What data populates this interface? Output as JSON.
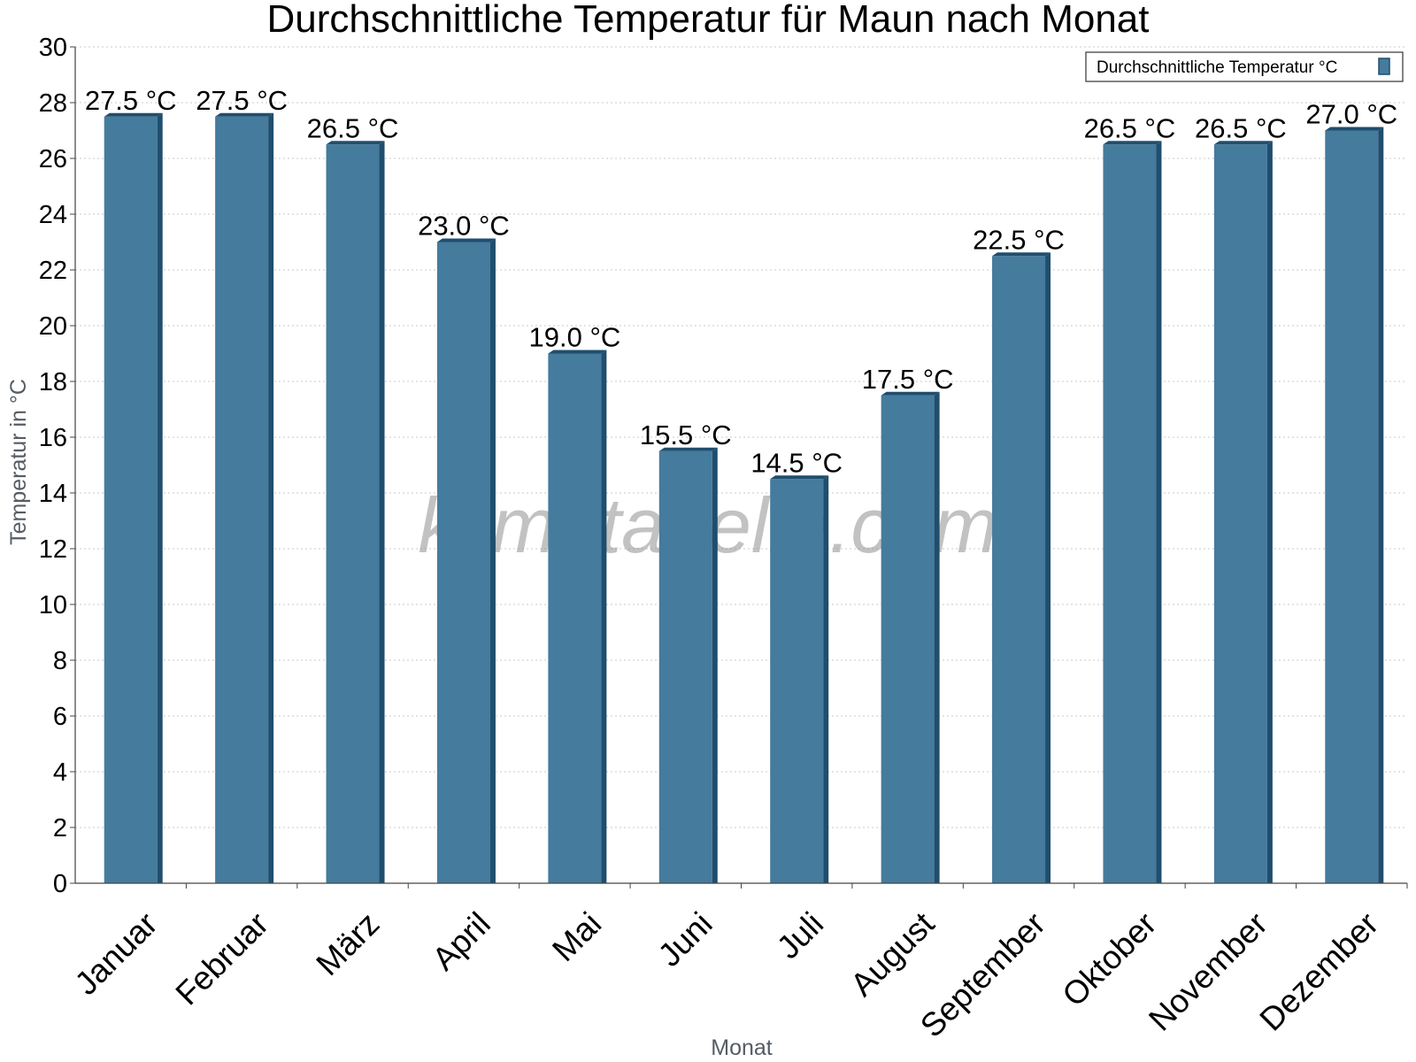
{
  "chart_data": {
    "type": "bar",
    "title": "Durchschnittliche Temperatur für Maun nach Monat",
    "xlabel": "Monat",
    "ylabel": "Temperatur in °C",
    "categories": [
      "Januar",
      "Februar",
      "März",
      "April",
      "Mai",
      "Juni",
      "Juli",
      "August",
      "September",
      "Oktober",
      "November",
      "Dezember"
    ],
    "series": [
      {
        "name": "Durchschnittliche Temperatur °C",
        "values": [
          27.5,
          27.5,
          26.5,
          23.0,
          19.0,
          15.5,
          14.5,
          17.5,
          22.5,
          26.5,
          26.5,
          27.0
        ],
        "labels": [
          "27.5 °C",
          "27.5 °C",
          "26.5 °C",
          "23.0 °C",
          "19.0 °C",
          "15.5 °C",
          "14.5 °C",
          "17.5 °C",
          "22.5 °C",
          "26.5 °C",
          "26.5 °C",
          "27.0 °C"
        ],
        "color": "#457b9d",
        "edge_color": "#1f4e6e"
      }
    ],
    "ylim": [
      0,
      30
    ],
    "yticks": [
      "0",
      "2",
      "4",
      "6",
      "8",
      "10",
      "12",
      "14",
      "16",
      "18",
      "20",
      "22",
      "24",
      "26",
      "28",
      "30"
    ],
    "grid": true,
    "legend_position": "top-right",
    "watermark": "klimatabelle.com"
  }
}
